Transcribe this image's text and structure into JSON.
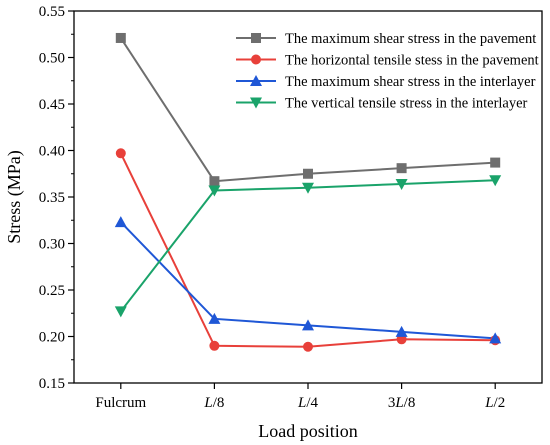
{
  "chart_data": {
    "type": "line",
    "title": "",
    "xlabel": "Load position",
    "ylabel": "Stress (MPa)",
    "ylim": [
      0.15,
      0.55
    ],
    "yticks": [
      "0.15",
      "0.20",
      "0.25",
      "0.30",
      "0.35",
      "0.40",
      "0.45",
      "0.50",
      "0.55"
    ],
    "categories": [
      "Fulcrum",
      "L/8",
      "L/4",
      "3L/8",
      "L/2"
    ],
    "legend_position": "top-right",
    "grid": false,
    "series": [
      {
        "name": "The maximum shear stress in the pavement",
        "color": "#6e6e6e",
        "marker": "square",
        "values": [
          0.521,
          0.367,
          0.375,
          0.381,
          0.387
        ]
      },
      {
        "name": "The horizontal tensile stess in the pavement",
        "color": "#e8403a",
        "marker": "circle",
        "values": [
          0.397,
          0.19,
          0.189,
          0.197,
          0.196
        ]
      },
      {
        "name": "The maximum shear stress in the interlayer",
        "color": "#1f57d6",
        "marker": "triangle-up",
        "values": [
          0.323,
          0.219,
          0.212,
          0.205,
          0.198
        ]
      },
      {
        "name": "The vertical tensile stress in the interlayer",
        "color": "#1aa36a",
        "marker": "triangle-down",
        "values": [
          0.227,
          0.357,
          0.36,
          0.364,
          0.368
        ]
      }
    ]
  }
}
